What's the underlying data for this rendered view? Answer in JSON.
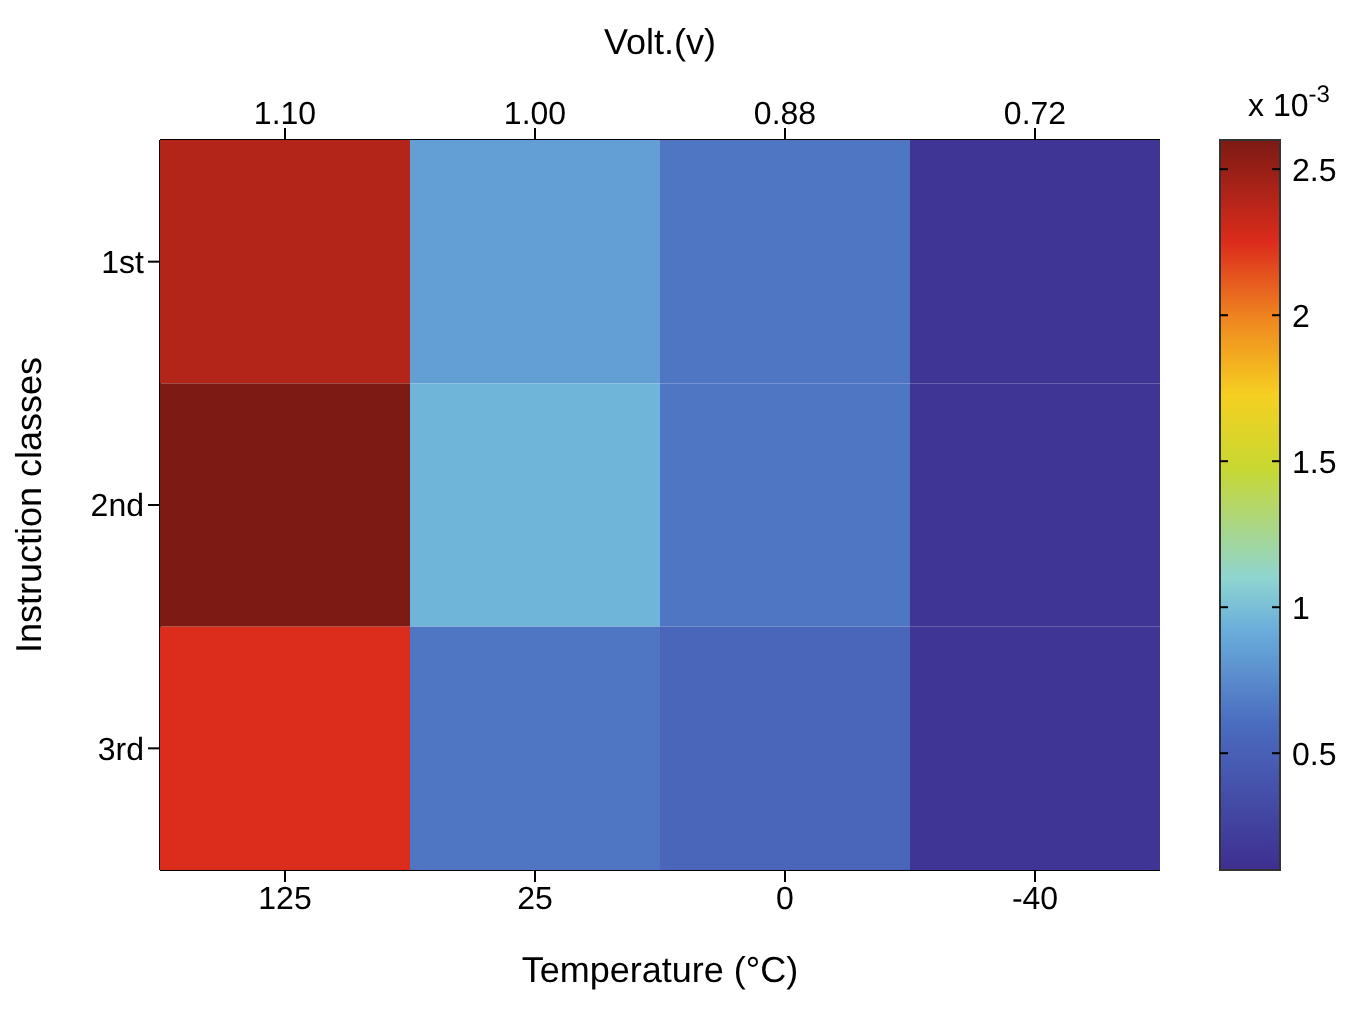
{
  "chart_data": {
    "type": "heatmap",
    "xlabel": "Temperature (°C)",
    "ylabel": "Instruction classes",
    "x2label": "Volt.(v)",
    "clabel": "x 10$^{-3}$",
    "categories": [
      "125",
      "25",
      "0",
      "-40"
    ],
    "y_categories": [
      "1st",
      "2nd",
      "3rd"
    ],
    "annotations": [
      "1.10",
      "1.00",
      "0.88",
      "0.72"
    ],
    "cells": [
      [
        2.4,
        0.85,
        0.65,
        0.15
      ],
      [
        2.6,
        0.95,
        0.65,
        0.15
      ],
      [
        2.25,
        0.65,
        0.55,
        0.15
      ]
    ],
    "clim": [
      0.1,
      2.6
    ],
    "cticks": [
      0.5,
      1,
      1.5,
      2,
      2.5
    ]
  }
}
